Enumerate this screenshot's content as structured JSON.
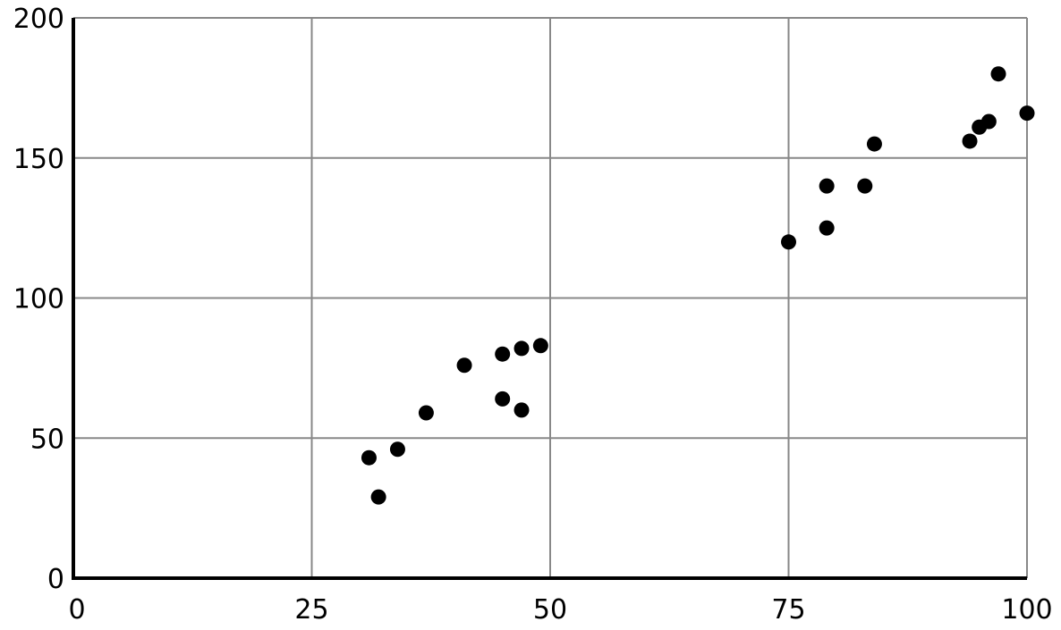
{
  "chart_data": {
    "type": "scatter",
    "title": "",
    "xlabel": "",
    "ylabel": "",
    "xlim": [
      0,
      100
    ],
    "ylim": [
      0,
      200
    ],
    "x_ticks": [
      0,
      25,
      50,
      75,
      100
    ],
    "y_ticks": [
      0,
      50,
      100,
      150,
      200
    ],
    "x_tick_labels": [
      "0",
      "25",
      "50",
      "75",
      "100"
    ],
    "y_tick_labels": [
      "0",
      "50",
      "100",
      "150",
      "200"
    ],
    "grid": true,
    "colors": {
      "points": "#000000",
      "grid": "#888888",
      "axes": "#000000"
    },
    "points": [
      {
        "x": 31,
        "y": 43
      },
      {
        "x": 32,
        "y": 29
      },
      {
        "x": 34,
        "y": 46
      },
      {
        "x": 37,
        "y": 59
      },
      {
        "x": 41,
        "y": 76
      },
      {
        "x": 45,
        "y": 80
      },
      {
        "x": 45,
        "y": 64
      },
      {
        "x": 47,
        "y": 82
      },
      {
        "x": 47,
        "y": 60
      },
      {
        "x": 49,
        "y": 83
      },
      {
        "x": 75,
        "y": 120
      },
      {
        "x": 79,
        "y": 140
      },
      {
        "x": 79,
        "y": 125
      },
      {
        "x": 83,
        "y": 140
      },
      {
        "x": 84,
        "y": 155
      },
      {
        "x": 94,
        "y": 156
      },
      {
        "x": 95,
        "y": 161
      },
      {
        "x": 96,
        "y": 163
      },
      {
        "x": 97,
        "y": 180
      },
      {
        "x": 100,
        "y": 166
      }
    ]
  }
}
